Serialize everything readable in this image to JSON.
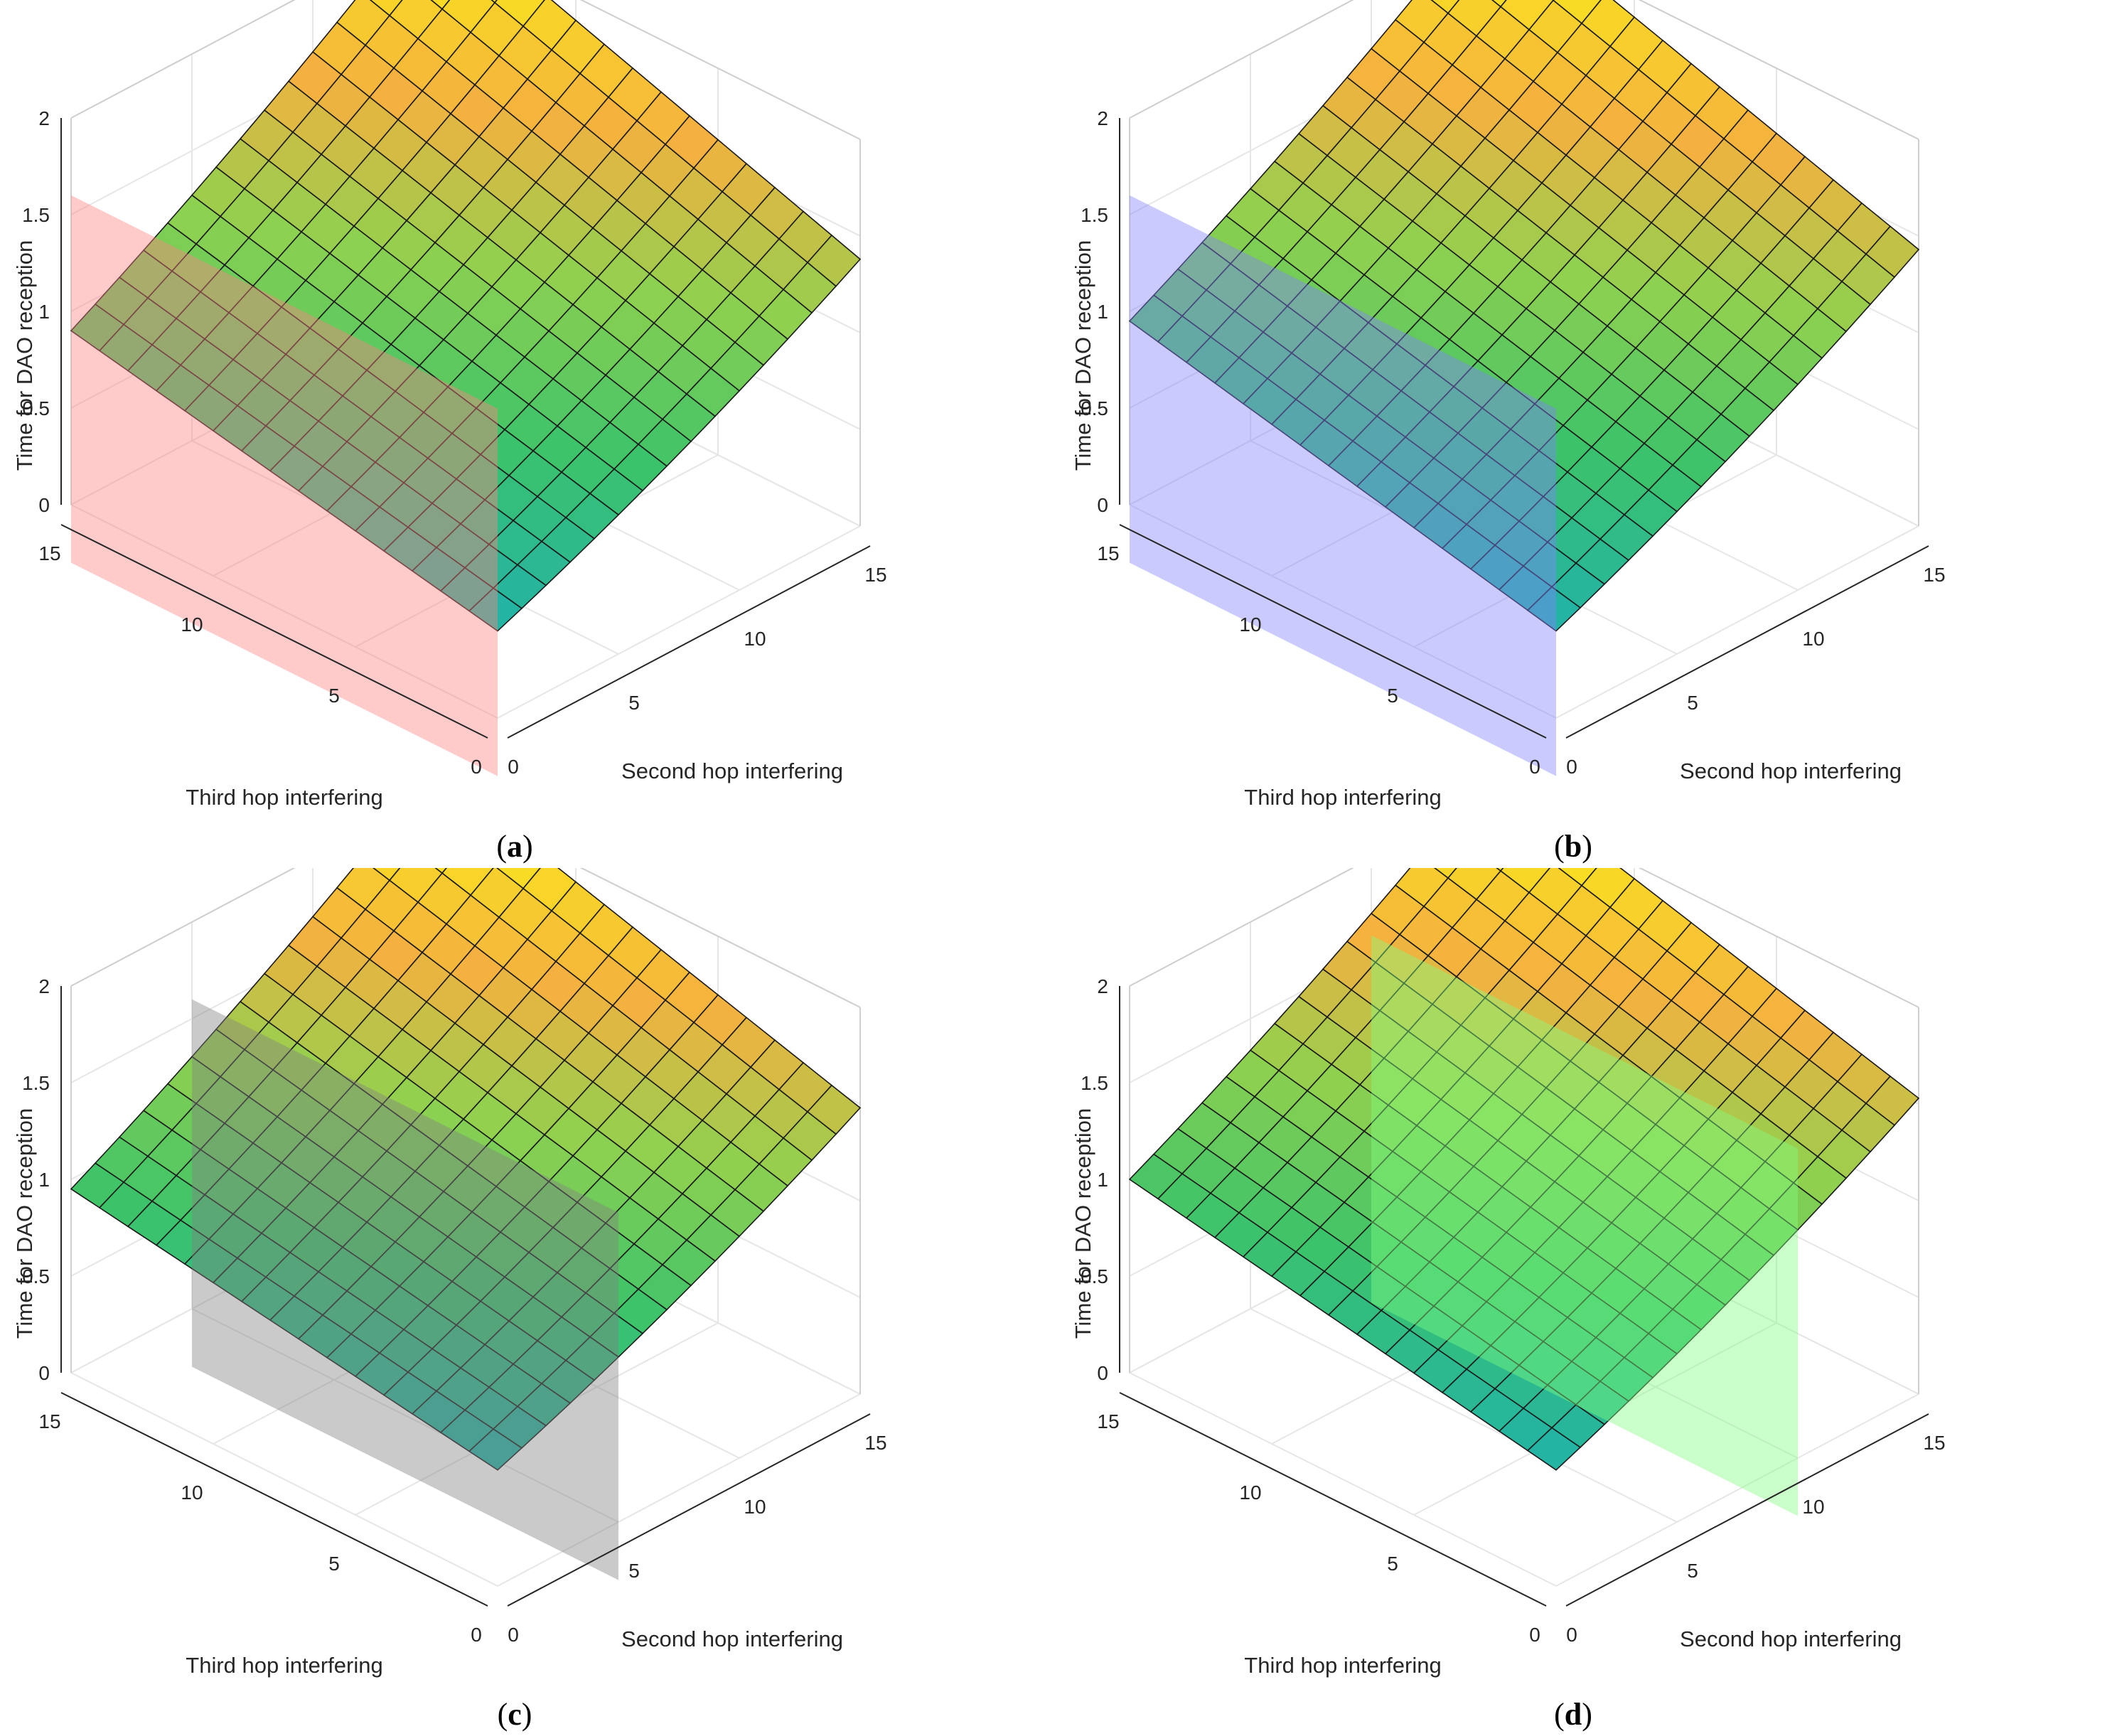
{
  "chart_data": [
    {
      "type": "surface",
      "caption": "(a)",
      "caption_letter": "a",
      "title": "",
      "xlabel": "Second hop interfering",
      "ylabel": "Third hop interfering",
      "zlabel": "Time for DAO reception",
      "xlim": [
        0,
        15
      ],
      "ylim": [
        0,
        15
      ],
      "zlim": [
        0,
        2
      ],
      "xticks": [
        "0",
        "5",
        "10",
        "15"
      ],
      "yticks": [
        "0",
        "5",
        "10",
        "15"
      ],
      "zticks": [
        "0",
        "0.5",
        "1",
        "1.5",
        "2"
      ],
      "grid": true,
      "surface": {
        "x": [
          0,
          1,
          2,
          3,
          4,
          5,
          6,
          7,
          8,
          9,
          10,
          11,
          12,
          13,
          14,
          15
        ],
        "y": [
          0,
          1,
          2,
          3,
          4,
          5,
          6,
          7,
          8,
          9,
          10,
          11,
          12,
          13,
          14,
          15
        ],
        "corners": {
          "x0y0": 0.45,
          "x15y0": 1.2,
          "x0y15": 0.9,
          "x15y15": 1.95
        }
      },
      "plane": {
        "axis": "x",
        "value": 0,
        "z_range": [
          -0.3,
          1.6
        ],
        "color": "#ff8080"
      }
    },
    {
      "type": "surface",
      "caption": "(b)",
      "caption_letter": "b",
      "title": "",
      "xlabel": "Second hop interfering",
      "ylabel": "Third hop interfering",
      "zlabel": "Time for DAO reception",
      "xlim": [
        0,
        15
      ],
      "ylim": [
        0,
        15
      ],
      "zlim": [
        0,
        2
      ],
      "xticks": [
        "0",
        "5",
        "10",
        "15"
      ],
      "yticks": [
        "0",
        "5",
        "10",
        "15"
      ],
      "zticks": [
        "0",
        "0.5",
        "1",
        "1.5",
        "2"
      ],
      "grid": true,
      "surface": {
        "x": [
          0,
          1,
          2,
          3,
          4,
          5,
          6,
          7,
          8,
          9,
          10,
          11,
          12,
          13,
          14,
          15
        ],
        "y": [
          0,
          1,
          2,
          3,
          4,
          5,
          6,
          7,
          8,
          9,
          10,
          11,
          12,
          13,
          14,
          15
        ],
        "corners": {
          "x0y0": 0.45,
          "x15y0": 1.25,
          "x0y15": 0.95,
          "x15y15": 1.95
        }
      },
      "plane": {
        "axis": "x",
        "value": 0,
        "z_range": [
          -0.3,
          1.6
        ],
        "color": "#8080ff"
      }
    },
    {
      "type": "surface",
      "caption": "(c)",
      "caption_letter": "c",
      "title": "",
      "xlabel": "Second hop interfering",
      "ylabel": "Third hop interfering",
      "zlabel": "Time for DAO reception",
      "xlim": [
        0,
        15
      ],
      "ylim": [
        0,
        15
      ],
      "zlim": [
        0,
        2
      ],
      "xticks": [
        "0",
        "5",
        "10",
        "15"
      ],
      "yticks": [
        "0",
        "5",
        "10",
        "15"
      ],
      "zticks": [
        "0",
        "0.5",
        "1",
        "1.5",
        "2"
      ],
      "grid": true,
      "surface": {
        "x": [
          0,
          1,
          2,
          3,
          4,
          5,
          6,
          7,
          8,
          9,
          10,
          11,
          12,
          13,
          14,
          15
        ],
        "y": [
          0,
          1,
          2,
          3,
          4,
          5,
          6,
          7,
          8,
          9,
          10,
          11,
          12,
          13,
          14,
          15
        ],
        "corners": {
          "x0y0": 0.6,
          "x15y0": 1.3,
          "x0y15": 0.95,
          "x15y15": 1.95
        }
      },
      "plane": {
        "axis": "x",
        "value": 5,
        "z_range": [
          -0.3,
          1.6
        ],
        "color": "#808080"
      }
    },
    {
      "type": "surface",
      "caption": "(d)",
      "caption_letter": "d",
      "title": "",
      "xlabel": "Second hop interfering",
      "ylabel": "Third hop interfering",
      "zlabel": "Time for DAO reception",
      "xlim": [
        0,
        15
      ],
      "ylim": [
        0,
        15
      ],
      "zlim": [
        0,
        2
      ],
      "xticks": [
        "0",
        "5",
        "10",
        "15"
      ],
      "yticks": [
        "0",
        "5",
        "10",
        "15"
      ],
      "zticks": [
        "0",
        "0.5",
        "1",
        "1.5",
        "2"
      ],
      "grid": true,
      "surface": {
        "x": [
          0,
          1,
          2,
          3,
          4,
          5,
          6,
          7,
          8,
          9,
          10,
          11,
          12,
          13,
          14,
          15
        ],
        "y": [
          0,
          1,
          2,
          3,
          4,
          5,
          6,
          7,
          8,
          9,
          10,
          11,
          12,
          13,
          14,
          15
        ],
        "corners": {
          "x0y0": 0.6,
          "x15y0": 1.35,
          "x0y15": 1.0,
          "x15y15": 1.95
        }
      },
      "plane": {
        "axis": "x",
        "value": 10,
        "z_range": [
          -0.3,
          1.6
        ],
        "color": "#80ff80"
      }
    }
  ],
  "colormap": [
    "#20b2aa",
    "#3cc36a",
    "#8fd14f",
    "#f5b13f",
    "#f9e51e"
  ]
}
